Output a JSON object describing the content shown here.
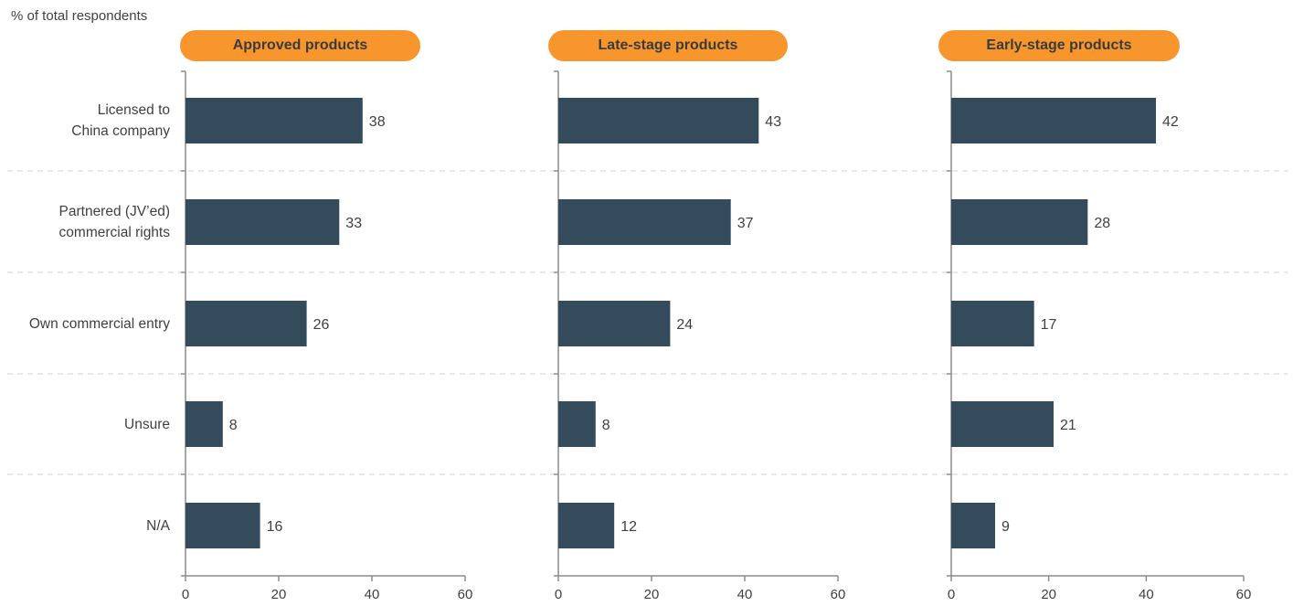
{
  "chart_data": {
    "type": "bar",
    "orientation": "horizontal",
    "ylabel": "% of total respondents",
    "categories": [
      "Licensed to China company",
      "Partnered (JV’ed) commercial rights",
      "Own commercial entry",
      "Unsure",
      "N/A"
    ],
    "category_lines": [
      [
        "Licensed to",
        "China company"
      ],
      [
        "Partnered (JV’ed)",
        "commercial rights"
      ],
      [
        "Own commercial entry"
      ],
      [
        "Unsure"
      ],
      [
        "N/A"
      ]
    ],
    "xlim": [
      0,
      60
    ],
    "xticks": [
      "0",
      "20",
      "40",
      "60"
    ],
    "grid": false,
    "series": [
      {
        "name": "Approved products",
        "values": [
          38,
          33,
          26,
          8,
          16
        ]
      },
      {
        "name": "Late-stage products",
        "values": [
          43,
          37,
          24,
          8,
          12
        ]
      },
      {
        "name": "Early-stage products",
        "values": [
          42,
          28,
          17,
          21,
          9
        ]
      }
    ],
    "colors": {
      "bar": "#344b5c",
      "pill": "#f7962d",
      "axis": "#8c8c8c",
      "separator": "#d0d0d0"
    }
  }
}
